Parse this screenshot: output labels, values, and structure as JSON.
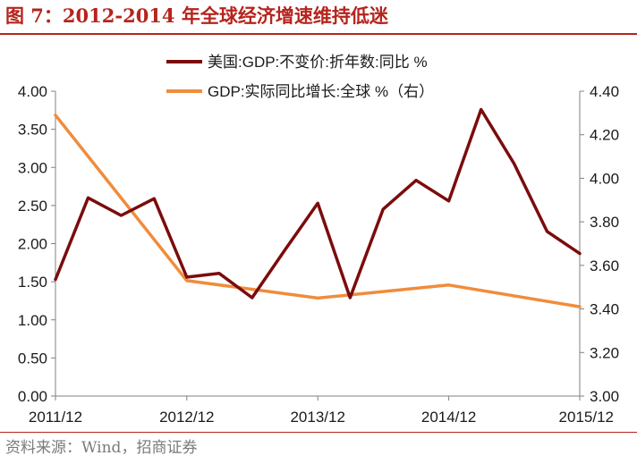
{
  "title": "图 7：2012-2014 年全球经济增速维持低迷",
  "source": "资料来源：Wind，招商证券",
  "chart_data": {
    "type": "line",
    "legend_position": "top-center",
    "grid": false,
    "x_ticks": [
      "2011/12",
      "2012/12",
      "2013/12",
      "2014/12",
      "2015/12"
    ],
    "y_left": {
      "range": [
        0,
        4
      ],
      "ticks": [
        "0.00",
        "0.50",
        "1.00",
        "1.50",
        "2.00",
        "2.50",
        "3.00",
        "3.50",
        "4.00"
      ]
    },
    "y_right": {
      "range": [
        3.0,
        4.4
      ],
      "ticks": [
        "3.00",
        "3.20",
        "3.40",
        "3.60",
        "3.80",
        "4.00",
        "4.20",
        "4.40"
      ]
    },
    "series": [
      {
        "name": "美国:GDP:不变价:折年数:同比 %",
        "axis": "left",
        "color": "#7b0c0c",
        "points": [
          {
            "x": "2011/12",
            "y": 1.53
          },
          {
            "x": "2012/03",
            "y": 2.6
          },
          {
            "x": "2012/06",
            "y": 2.37
          },
          {
            "x": "2012/09",
            "y": 2.59
          },
          {
            "x": "2012/12",
            "y": 1.56
          },
          {
            "x": "2013/03",
            "y": 1.61
          },
          {
            "x": "2013/06",
            "y": 1.29
          },
          {
            "x": "2013/09",
            "y": 1.92
          },
          {
            "x": "2013/12",
            "y": 2.53
          },
          {
            "x": "2014/03",
            "y": 1.29
          },
          {
            "x": "2014/06",
            "y": 2.45
          },
          {
            "x": "2014/09",
            "y": 2.83
          },
          {
            "x": "2014/12",
            "y": 2.56
          },
          {
            "x": "2015/03",
            "y": 3.76
          },
          {
            "x": "2015/06",
            "y": 3.05
          },
          {
            "x": "2015/09",
            "y": 2.16
          },
          {
            "x": "2015/12",
            "y": 1.87
          }
        ]
      },
      {
        "name": "GDP:实际同比增长:全球 %（右）",
        "axis": "right",
        "color": "#f08c3c",
        "points": [
          {
            "x": "2011/12",
            "y": 4.29
          },
          {
            "x": "2012/12",
            "y": 3.53
          },
          {
            "x": "2013/12",
            "y": 3.45
          },
          {
            "x": "2014/12",
            "y": 3.51
          },
          {
            "x": "2015/12",
            "y": 3.41
          }
        ]
      }
    ]
  }
}
